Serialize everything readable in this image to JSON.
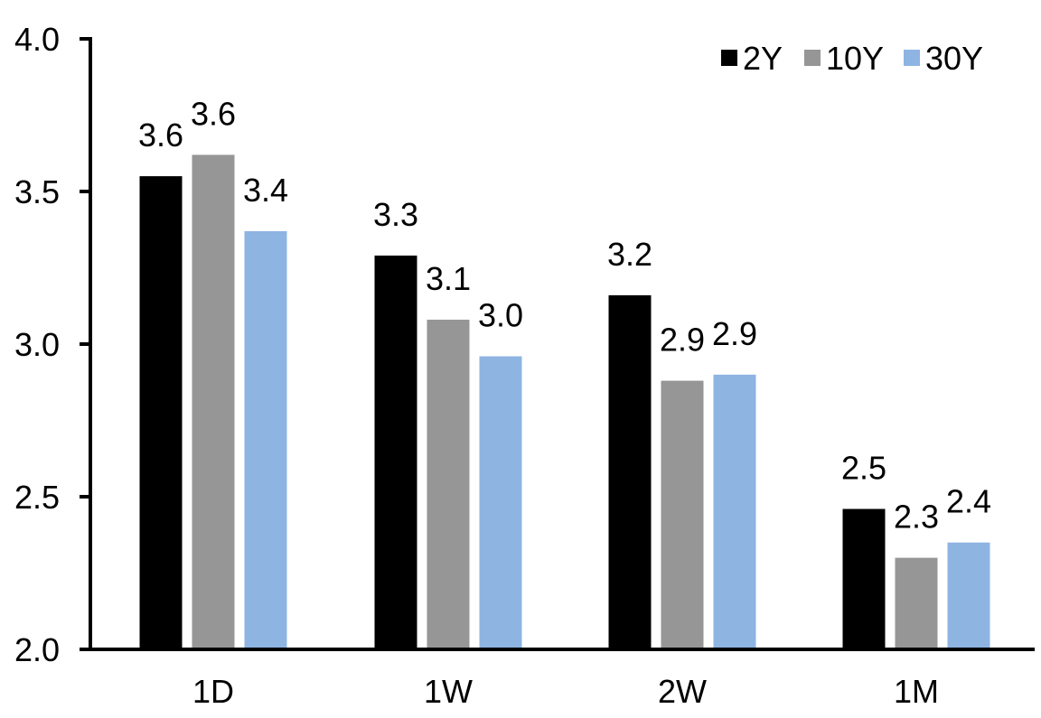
{
  "chart_data": {
    "type": "bar",
    "title": "",
    "xlabel": "",
    "ylabel": "",
    "categories": [
      "1D",
      "1W",
      "2W",
      "1M"
    ],
    "series": [
      {
        "name": "2Y",
        "color": "#000000",
        "values": [
          3.55,
          3.29,
          3.16,
          2.46
        ],
        "labels": [
          "3.6",
          "3.3",
          "3.2",
          "2.5"
        ]
      },
      {
        "name": "10Y",
        "color": "#969696",
        "values": [
          3.62,
          3.08,
          2.88,
          2.3
        ],
        "labels": [
          "3.6",
          "3.1",
          "2.9",
          "2.3"
        ]
      },
      {
        "name": "30Y",
        "color": "#8EB4E2",
        "values": [
          3.37,
          2.96,
          2.9,
          2.35
        ],
        "labels": [
          "3.4",
          "3.0",
          "2.9",
          "2.4"
        ]
      }
    ],
    "ylim": [
      2.0,
      4.0
    ],
    "yticks": [
      2.0,
      2.5,
      3.0,
      3.5,
      4.0
    ],
    "ytick_labels": [
      "2.0",
      "2.5",
      "3.0",
      "3.5",
      "4.0"
    ],
    "grid": false,
    "legend_position": "top-right",
    "axis_color": "#000000",
    "text_color": "#000000"
  }
}
